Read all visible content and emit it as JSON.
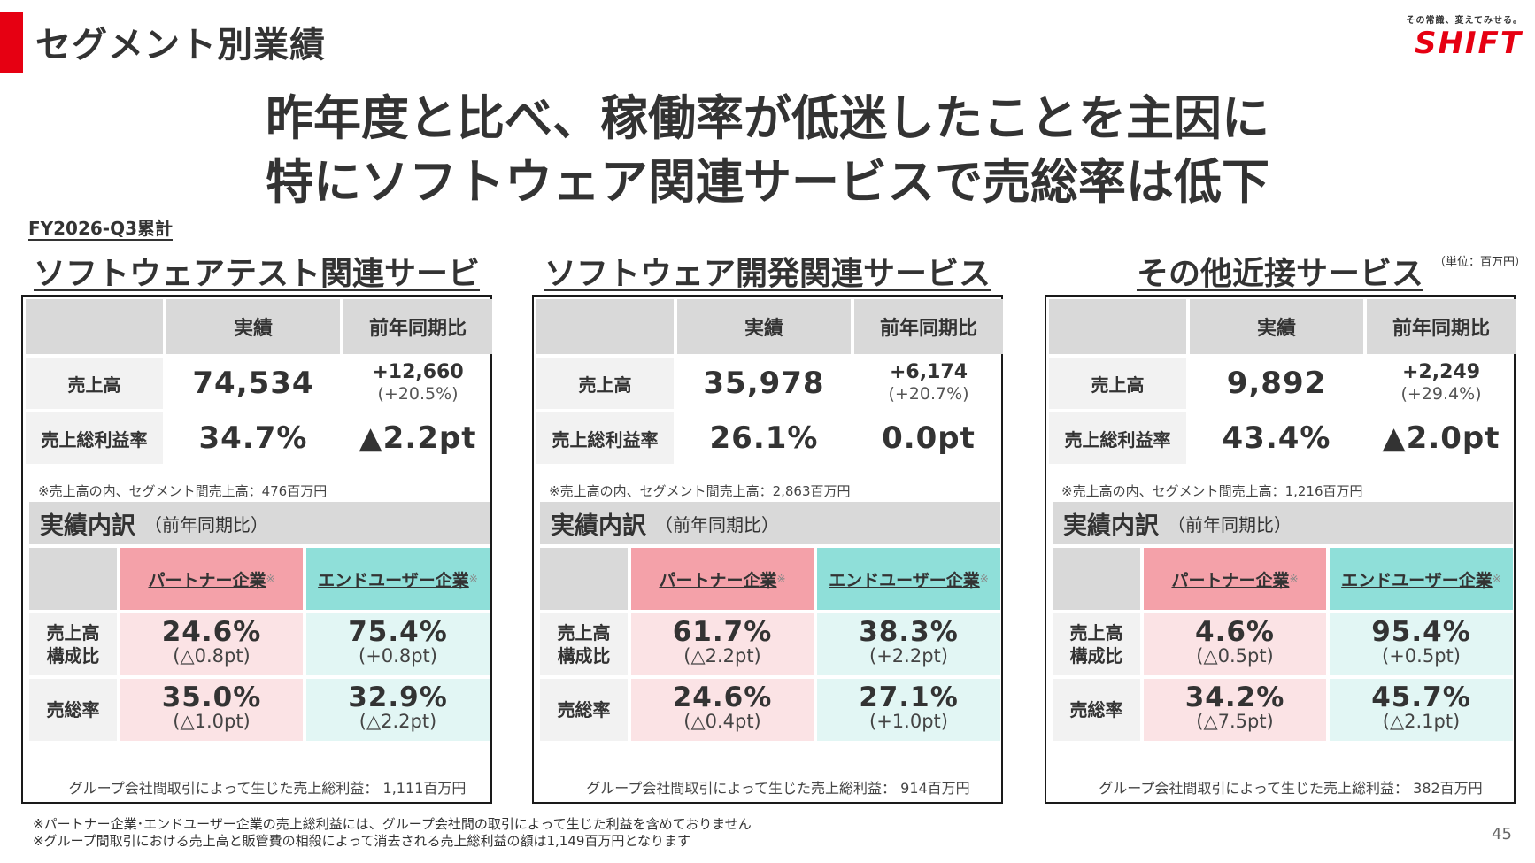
{
  "header": {
    "title": "セグメント別業績",
    "logo_tagline": "その常識、変えてみせる。",
    "logo_text": "SHIFT"
  },
  "headline": {
    "line1": "昨年度と比べ、稼働率が低迷したことを主因に",
    "line2": "特にソフトウェア関連サービスで売総率は低下"
  },
  "period_label": "FY2026-Q3累計",
  "unit_label": "（単位：百万円）",
  "table_headers": {
    "actual": "実績",
    "yoy": "前年同期比",
    "sales_label": "売上高",
    "margin_label": "売上総利益率"
  },
  "breakdown_labels": {
    "title": "実績内訳",
    "subtitle": "（前年同期比）",
    "partner": "パートナー企業",
    "enduser": "エンドユーザー企業",
    "note_mark": "※",
    "share_line1": "売上高",
    "share_line2": "構成比",
    "margin": "売総率"
  },
  "segments": [
    {
      "name": "ソフトウェアテスト関連サービス",
      "sales": "74,534",
      "sales_yoy": "+12,660",
      "sales_yoy_pct": "(+20.5%)",
      "margin": "34.7%",
      "margin_yoy": "▲2.2pt",
      "note": "※売上高の内、セグメント間売上高：476百万円",
      "partner_share": "24.6%",
      "partner_share_chg": "(△0.8pt)",
      "enduser_share": "75.4%",
      "enduser_share_chg": "(+0.8pt)",
      "partner_margin": "35.0%",
      "partner_margin_chg": "(△1.0pt)",
      "enduser_margin": "32.9%",
      "enduser_margin_chg": "(△2.2pt)",
      "group_profit": "グループ会社間取引によって生じた売上総利益： 1,111百万円"
    },
    {
      "name": "ソフトウェア開発関連サービス",
      "sales": "35,978",
      "sales_yoy": "+6,174",
      "sales_yoy_pct": "(+20.7%)",
      "margin": "26.1%",
      "margin_yoy": "0.0pt",
      "note": "※売上高の内、セグメント間売上高：2,863百万円",
      "partner_share": "61.7%",
      "partner_share_chg": "(△2.2pt)",
      "enduser_share": "38.3%",
      "enduser_share_chg": "(+2.2pt)",
      "partner_margin": "24.6%",
      "partner_margin_chg": "(△0.4pt)",
      "enduser_margin": "27.1%",
      "enduser_margin_chg": "(+1.0pt)",
      "group_profit": "グループ会社間取引によって生じた売上総利益： 914百万円"
    },
    {
      "name": "その他近接サービス",
      "sales": "9,892",
      "sales_yoy": "+2,249",
      "sales_yoy_pct": "(+29.4%)",
      "margin": "43.4%",
      "margin_yoy": "▲2.0pt",
      "note": "※売上高の内、セグメント間売上高：1,216百万円",
      "partner_share": "4.6%",
      "partner_share_chg": "(△0.5pt)",
      "enduser_share": "95.4%",
      "enduser_share_chg": "(+0.5pt)",
      "partner_margin": "34.2%",
      "partner_margin_chg": "(△7.5pt)",
      "enduser_margin": "45.7%",
      "enduser_margin_chg": "(△2.1pt)",
      "group_profit": "グループ会社間取引によって生じた売上総利益： 382百万円"
    }
  ],
  "footnotes": {
    "line1": "※パートナー企業･エンドユーザー企業の売上総利益には、グループ会社間の取引によって生じた利益を含めておりません",
    "line2": "※グループ間取引における売上高と販管費の相殺によって消去される売上総利益の額は1,149百万円となります"
  },
  "page_number": "45",
  "colors": {
    "accent_red": "#e60012",
    "partner_header": "#f4a1a9",
    "partner_cell": "#fbe3e5",
    "enduser_header": "#8fdfd9",
    "enduser_cell": "#e2f6f4",
    "header_gray": "#d9d9d9"
  }
}
